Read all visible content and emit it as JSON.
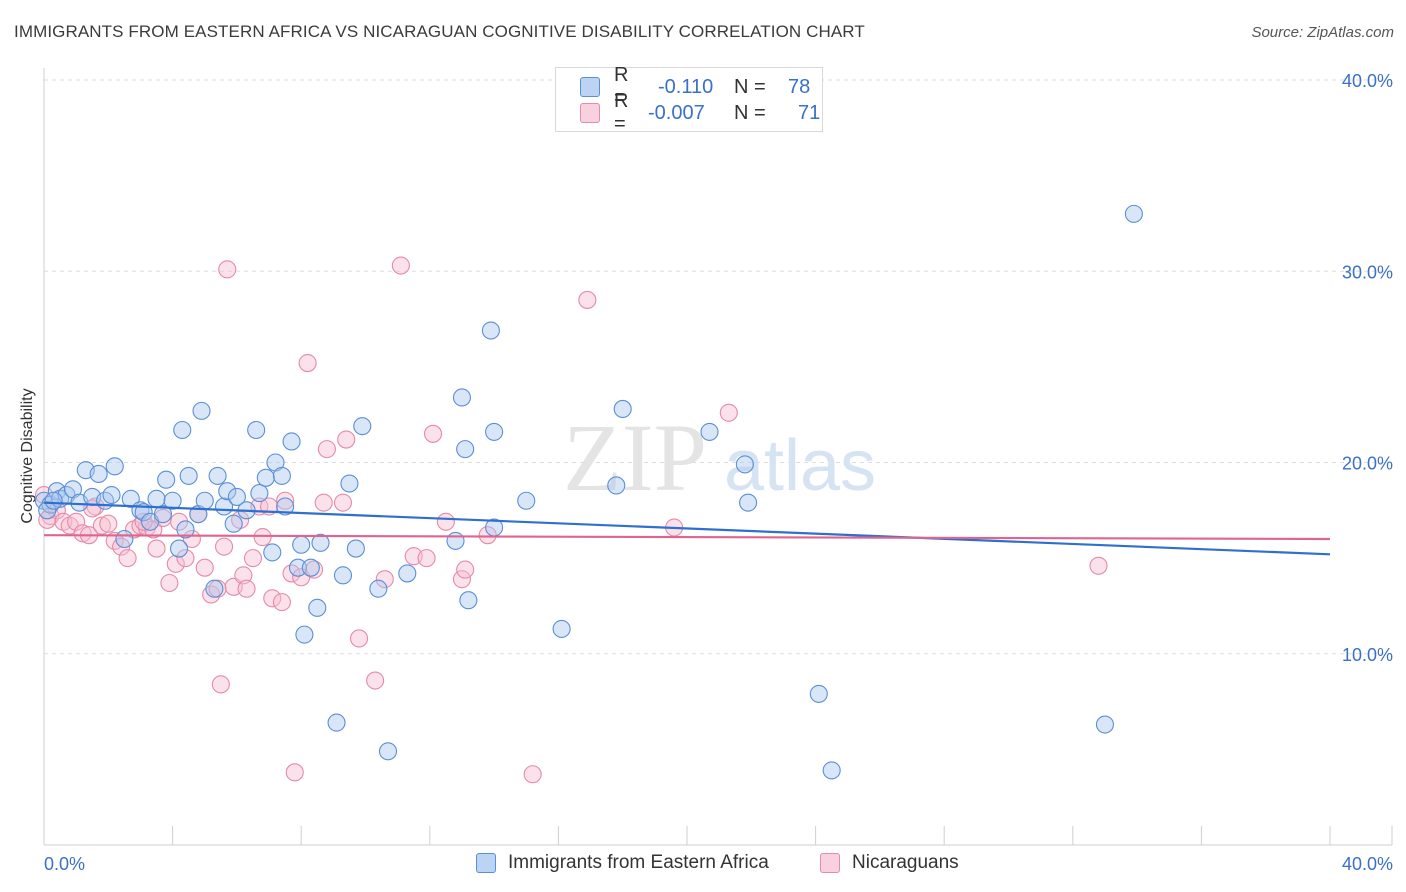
{
  "header": {
    "title": "IMMIGRANTS FROM EASTERN AFRICA VS NICARAGUAN COGNITIVE DISABILITY CORRELATION CHART",
    "source": "Source: ZipAtlas.com"
  },
  "watermark": {
    "zip": "ZIP",
    "atlas": "atlas"
  },
  "legend": {
    "rows": [
      {
        "r_label": "R =",
        "r_value": "-0.110",
        "n_label": "N =",
        "n_value": "78"
      },
      {
        "r_label": "R =",
        "r_value": "-0.007",
        "n_label": "N =",
        "n_value": "71"
      }
    ]
  },
  "bottom_legend": {
    "items": [
      {
        "label": "Immigrants from Eastern Africa"
      },
      {
        "label": "Nicaraguans"
      }
    ]
  },
  "colors": {
    "blue_fill": "#aac8ef",
    "blue_stroke": "#5a8fd6",
    "blue_line": "#2f6fd0",
    "pink_fill": "#f6bfd0",
    "pink_stroke": "#e58aa8",
    "pink_line": "#e0648e",
    "tick_text": "#3a70c9",
    "grid": "#dddddd"
  },
  "chart_data": {
    "type": "scatter",
    "title": "IMMIGRANTS FROM EASTERN AFRICA VS NICARAGUAN COGNITIVE DISABILITY CORRELATION CHART",
    "xlabel": "",
    "ylabel": "Cognitive Disability",
    "xlim": [
      0,
      40
    ],
    "ylim": [
      0,
      40
    ],
    "x_tick_labels": [
      "0.0%",
      "40.0%"
    ],
    "y_ticks": [
      10,
      20,
      30,
      40
    ],
    "y_tick_labels": [
      "10.0%",
      "20.0%",
      "30.0%",
      "40.0%"
    ],
    "grid": true,
    "legend_position": "top-center",
    "series": [
      {
        "name": "Immigrants from Eastern Africa",
        "color": "#5a8fd6",
        "points": [
          [
            0.0,
            18.0
          ],
          [
            0.2,
            17.8
          ],
          [
            0.4,
            18.5
          ],
          [
            0.5,
            18.1
          ],
          [
            0.7,
            18.3
          ],
          [
            0.9,
            18.6
          ],
          [
            1.1,
            17.9
          ],
          [
            1.3,
            19.6
          ],
          [
            1.5,
            18.2
          ],
          [
            1.7,
            19.4
          ],
          [
            1.9,
            18.0
          ],
          [
            2.1,
            18.3
          ],
          [
            2.2,
            19.8
          ],
          [
            2.5,
            16.0
          ],
          [
            2.7,
            18.1
          ],
          [
            3.0,
            17.5
          ],
          [
            3.1,
            17.4
          ],
          [
            3.3,
            16.9
          ],
          [
            3.5,
            18.1
          ],
          [
            3.7,
            17.3
          ],
          [
            3.8,
            19.1
          ],
          [
            4.0,
            18.0
          ],
          [
            4.2,
            15.5
          ],
          [
            4.3,
            21.7
          ],
          [
            4.4,
            16.5
          ],
          [
            4.5,
            19.3
          ],
          [
            4.8,
            17.3
          ],
          [
            4.9,
            22.7
          ],
          [
            5.0,
            18.0
          ],
          [
            5.3,
            13.4
          ],
          [
            5.4,
            19.3
          ],
          [
            5.6,
            17.7
          ],
          [
            5.7,
            18.5
          ],
          [
            5.9,
            16.8
          ],
          [
            6.0,
            18.2
          ],
          [
            6.3,
            17.5
          ],
          [
            6.6,
            21.7
          ],
          [
            6.7,
            18.4
          ],
          [
            6.9,
            19.2
          ],
          [
            7.1,
            15.3
          ],
          [
            7.2,
            20.0
          ],
          [
            7.4,
            19.3
          ],
          [
            7.5,
            17.7
          ],
          [
            7.7,
            21.1
          ],
          [
            7.9,
            14.5
          ],
          [
            8.0,
            15.7
          ],
          [
            8.1,
            11.0
          ],
          [
            8.3,
            14.5
          ],
          [
            8.5,
            12.4
          ],
          [
            8.6,
            15.8
          ],
          [
            9.1,
            6.4
          ],
          [
            9.3,
            14.1
          ],
          [
            9.5,
            18.9
          ],
          [
            9.7,
            15.5
          ],
          [
            9.9,
            21.9
          ],
          [
            10.4,
            13.4
          ],
          [
            10.7,
            4.9
          ],
          [
            11.3,
            14.2
          ],
          [
            12.8,
            15.9
          ],
          [
            13.0,
            23.4
          ],
          [
            13.1,
            20.7
          ],
          [
            13.2,
            12.8
          ],
          [
            13.9,
            26.9
          ],
          [
            14.0,
            16.6
          ],
          [
            14.0,
            21.6
          ],
          [
            15.0,
            18.0
          ],
          [
            16.1,
            11.3
          ],
          [
            17.8,
            18.8
          ],
          [
            18.0,
            22.8
          ],
          [
            20.7,
            21.6
          ],
          [
            21.8,
            19.9
          ],
          [
            21.9,
            17.9
          ],
          [
            24.1,
            7.9
          ],
          [
            24.5,
            3.9
          ],
          [
            33.0,
            6.3
          ],
          [
            33.9,
            33.0
          ],
          [
            0.1,
            17.5
          ],
          [
            0.3,
            18.0
          ]
        ]
      },
      {
        "name": "Nicaraguans",
        "color": "#e58aa8",
        "points": [
          [
            0.0,
            18.3
          ],
          [
            0.2,
            17.2
          ],
          [
            0.4,
            17.5
          ],
          [
            0.6,
            16.9
          ],
          [
            0.8,
            16.7
          ],
          [
            1.0,
            16.9
          ],
          [
            1.2,
            16.3
          ],
          [
            1.4,
            16.2
          ],
          [
            1.6,
            17.7
          ],
          [
            1.8,
            16.7
          ],
          [
            2.0,
            16.8
          ],
          [
            2.2,
            15.9
          ],
          [
            2.4,
            15.6
          ],
          [
            2.6,
            15.0
          ],
          [
            2.8,
            16.5
          ],
          [
            3.0,
            16.7
          ],
          [
            3.2,
            16.6
          ],
          [
            3.4,
            16.5
          ],
          [
            3.5,
            15.5
          ],
          [
            3.7,
            17.1
          ],
          [
            3.9,
            13.7
          ],
          [
            4.1,
            14.7
          ],
          [
            4.2,
            16.9
          ],
          [
            4.4,
            15.0
          ],
          [
            4.6,
            16.0
          ],
          [
            4.8,
            17.3
          ],
          [
            5.0,
            14.5
          ],
          [
            5.2,
            13.1
          ],
          [
            5.4,
            13.4
          ],
          [
            5.6,
            15.6
          ],
          [
            5.7,
            30.1
          ],
          [
            5.9,
            13.5
          ],
          [
            6.1,
            17.0
          ],
          [
            6.2,
            14.1
          ],
          [
            6.3,
            13.4
          ],
          [
            6.5,
            15.0
          ],
          [
            6.7,
            17.7
          ],
          [
            6.8,
            16.1
          ],
          [
            7.0,
            17.7
          ],
          [
            7.1,
            12.9
          ],
          [
            7.4,
            12.7
          ],
          [
            7.5,
            18.0
          ],
          [
            7.7,
            14.2
          ],
          [
            7.8,
            3.8
          ],
          [
            8.0,
            14.0
          ],
          [
            8.2,
            25.2
          ],
          [
            8.4,
            14.4
          ],
          [
            8.7,
            17.9
          ],
          [
            8.8,
            20.7
          ],
          [
            9.3,
            17.9
          ],
          [
            9.4,
            21.2
          ],
          [
            9.8,
            10.8
          ],
          [
            10.3,
            8.6
          ],
          [
            10.6,
            13.9
          ],
          [
            11.1,
            30.3
          ],
          [
            11.5,
            15.1
          ],
          [
            11.9,
            15.0
          ],
          [
            12.1,
            21.5
          ],
          [
            12.5,
            16.9
          ],
          [
            13.0,
            13.9
          ],
          [
            13.1,
            14.4
          ],
          [
            13.8,
            16.2
          ],
          [
            15.2,
            3.7
          ],
          [
            16.9,
            28.5
          ],
          [
            19.6,
            16.6
          ],
          [
            21.3,
            22.6
          ],
          [
            32.8,
            14.6
          ],
          [
            0.1,
            17.0
          ],
          [
            1.5,
            17.6
          ],
          [
            3.1,
            16.9
          ],
          [
            5.5,
            8.4
          ]
        ]
      }
    ],
    "trend_lines": [
      {
        "series": "Immigrants from Eastern Africa",
        "x": [
          0,
          40
        ],
        "y": [
          17.9,
          15.2
        ]
      },
      {
        "series": "Nicaraguans",
        "x": [
          0,
          40
        ],
        "y": [
          16.2,
          16.0
        ]
      }
    ]
  }
}
